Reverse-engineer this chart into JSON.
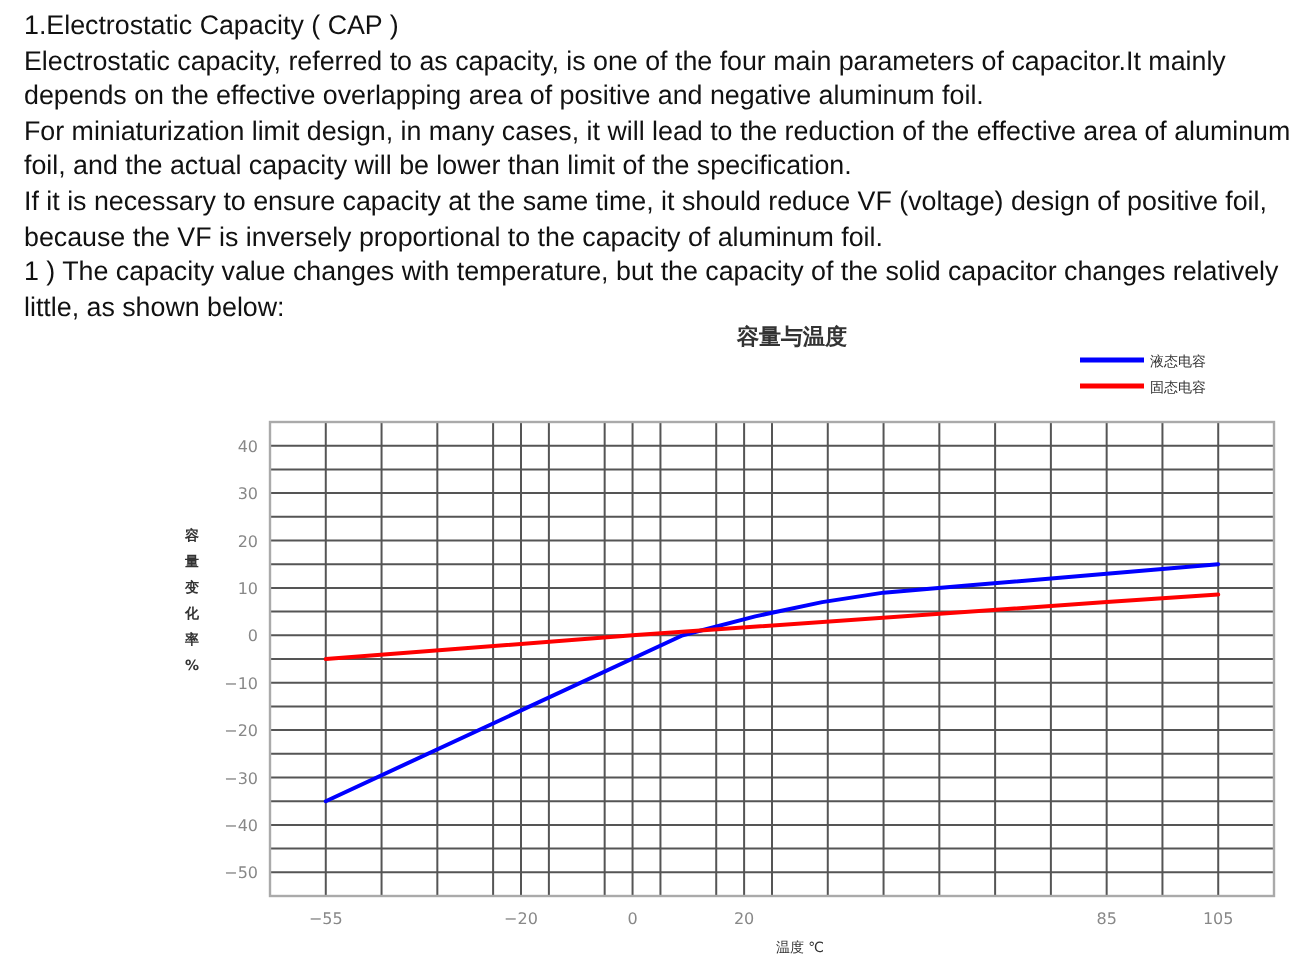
{
  "chart_data": {
    "type": "line",
    "title": "容量与温度",
    "xlabel": "温度 ℃",
    "ylabel": "容量变化率%",
    "annotations": [
      "1.Electrostatic Capacity ( CAP )",
      "Electrostatic capacity, referred to as capacity, is one of the four main parameters of capacitor.It mainly depends on the effective overlapping area of positive and negative aluminum foil.",
      "For miniaturization limit design, in many cases, it will lead to the reduction of the effective area of aluminum foil, and the actual capacity will be lower than limit of the specification.",
      "If it is necessary to ensure capacity at the same time, it should reduce VF (voltage) design of positive foil, because the VF is inversely proportional to the capacity of aluminum foil.",
      "1 ) The capacity value changes with temperature, but the capacity of the solid capacitor changes relatively little, as shown below:"
    ],
    "series": [
      {
        "name": "液态电容",
        "color": "#0000ff",
        "x": [
          -55,
          9,
          22,
          34,
          45,
          60,
          85,
          105
        ],
        "values": [
          -35,
          0,
          4,
          7,
          9,
          10.5,
          13,
          15
        ]
      },
      {
        "name": "固态电容",
        "color": "#ff0000",
        "x": [
          -55,
          0,
          85,
          105
        ],
        "values": [
          -5,
          0,
          7,
          8.6
        ]
      }
    ],
    "xlim": [
      -65,
      115
    ],
    "xticks": [
      -55,
      {
        "value": -45,
        "label": null
      },
      {
        "value": -35,
        "label": null
      },
      {
        "value": -25,
        "label": null
      },
      -20,
      {
        "value": -15,
        "label": null
      },
      {
        "value": -5,
        "label": null
      },
      0,
      {
        "value": 5,
        "label": null
      },
      {
        "value": 15,
        "label": null
      },
      20,
      {
        "value": 25,
        "label": null
      },
      {
        "value": 35,
        "label": null
      },
      {
        "value": 45,
        "label": null
      },
      {
        "value": 55,
        "label": null
      },
      {
        "value": 65,
        "label": null
      },
      {
        "value": 75,
        "label": null
      },
      85,
      {
        "value": 95,
        "label": null
      },
      105
    ],
    "ylim": [
      -55,
      45
    ],
    "yticks": [
      -50,
      {
        "value": -45,
        "label": null
      },
      -40,
      {
        "value": -35,
        "label": null
      },
      -30,
      {
        "value": -25,
        "label": null
      },
      -20,
      {
        "value": -15,
        "label": null
      },
      -10,
      {
        "value": -5,
        "label": null
      },
      0,
      {
        "value": 5,
        "label": null
      },
      10,
      {
        "value": 15,
        "label": null
      },
      20,
      {
        "value": 25,
        "label": null
      },
      30,
      {
        "value": 35,
        "label": null
      },
      40
    ],
    "grid": true,
    "legend": "top right",
    "marker": "none",
    "line_style": "solid"
  }
}
